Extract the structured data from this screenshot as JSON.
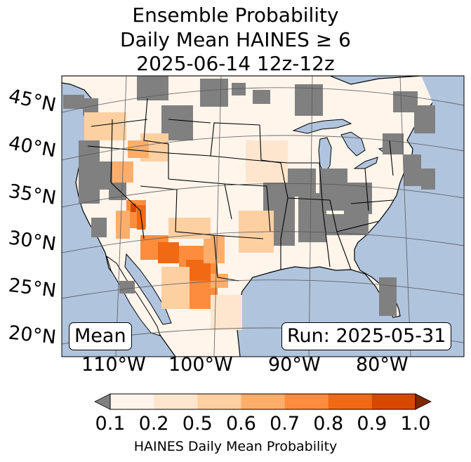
{
  "title": {
    "line1": "Ensemble Probability",
    "line2": "Daily Mean HAINES ≥ 6",
    "line3": "2025-06-14 12z-12z"
  },
  "lat_labels": [
    "45°N",
    "40°N",
    "35°N",
    "30°N",
    "25°N",
    "20°N"
  ],
  "lon_labels": [
    "110°W",
    "100°W",
    "90°W",
    "80°W"
  ],
  "boxes": {
    "left": "Mean",
    "right": "Run: 2025-05-31"
  },
  "colorbar": {
    "ticks": [
      "0.1",
      "0.2",
      "0.5",
      "0.6",
      "0.7",
      "0.8",
      "0.9",
      "1.0"
    ],
    "label": "HAINES Daily Mean Probability",
    "colors": [
      "#fff5eb",
      "#fee6ce",
      "#fdd0a2",
      "#fdae6b",
      "#fd8d3c",
      "#f16913",
      "#d94801",
      "#a63603"
    ],
    "under_color": "#808080",
    "over_color": "#7f2704"
  },
  "colors": {
    "ocean": "#b0c4de",
    "missing": "#808080"
  }
}
